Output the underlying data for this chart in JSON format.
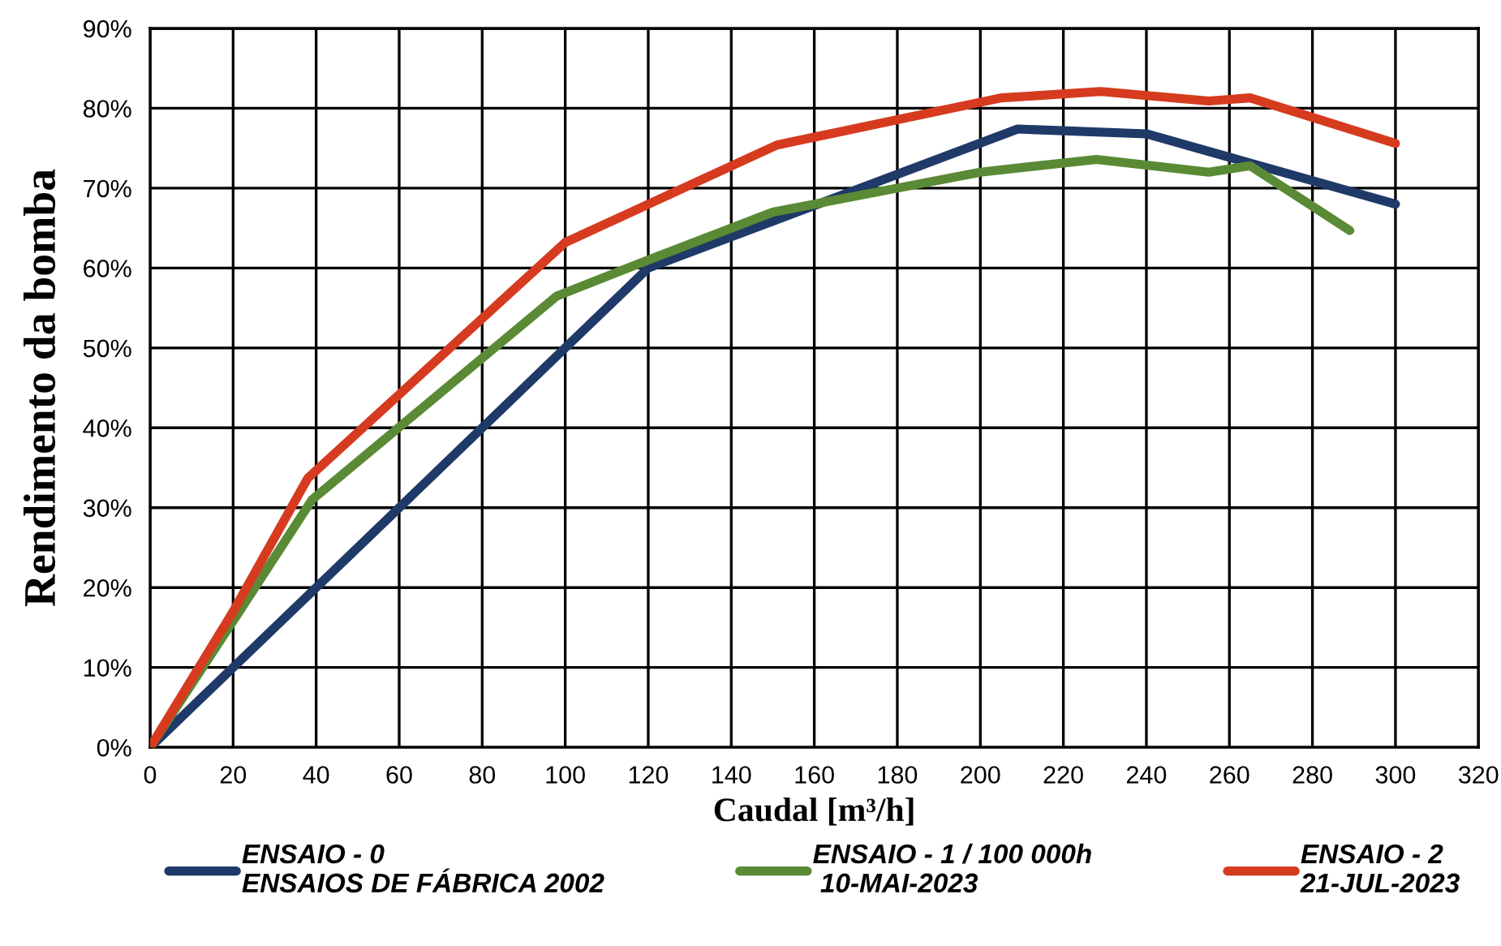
{
  "chart_data": {
    "type": "line",
    "xlabel": "Caudal [m³/h]",
    "ylabel": "Rendimento da bomba",
    "xlim": [
      0,
      320
    ],
    "xticks": [
      0,
      20,
      40,
      60,
      80,
      100,
      120,
      140,
      160,
      180,
      200,
      220,
      240,
      260,
      280,
      300,
      320
    ],
    "ylim": [
      0,
      90
    ],
    "yticks": [
      {
        "value": 0,
        "label": "0%"
      },
      {
        "value": 10,
        "label": "10%"
      },
      {
        "value": 20,
        "label": "20%"
      },
      {
        "value": 30,
        "label": "30%"
      },
      {
        "value": 40,
        "label": "40%"
      },
      {
        "value": 50,
        "label": "50%"
      },
      {
        "value": 60,
        "label": "60%"
      },
      {
        "value": 70,
        "label": "70%"
      },
      {
        "value": 80,
        "label": "80%"
      },
      {
        "value": 90,
        "label": "90%"
      }
    ],
    "grid": true,
    "legend": "bottom",
    "marker": "none",
    "line_style": "solid",
    "series": [
      {
        "name": "ENSAIO - 0\nENSAIOS DE FÁBRICA 2002",
        "color": "#1f3a68",
        "x": [
          0,
          40,
          100,
          120,
          209,
          240,
          300
        ],
        "values": [
          0,
          20,
          50,
          60,
          77.4,
          76.8,
          68
        ]
      },
      {
        "name": "ENSAIO - 1 / 100 000h\n 10-MAI-2023",
        "color": "#5a8a35",
        "x": [
          0,
          20,
          39,
          98,
          120,
          150,
          180,
          200,
          228,
          255,
          265,
          289
        ],
        "values": [
          0,
          15.8,
          31,
          56.5,
          61,
          67,
          70,
          72,
          73.6,
          72,
          72.8,
          64.7
        ]
      },
      {
        "name": "ENSAIO - 2\n21-JUL-2023",
        "color": "#d63b1f",
        "x": [
          0,
          20,
          38,
          100,
          151,
          205,
          229,
          255,
          265,
          300
        ],
        "values": [
          0,
          17,
          33.7,
          63.2,
          75.4,
          81.3,
          82.1,
          80.9,
          81.3,
          75.6
        ]
      }
    ]
  }
}
